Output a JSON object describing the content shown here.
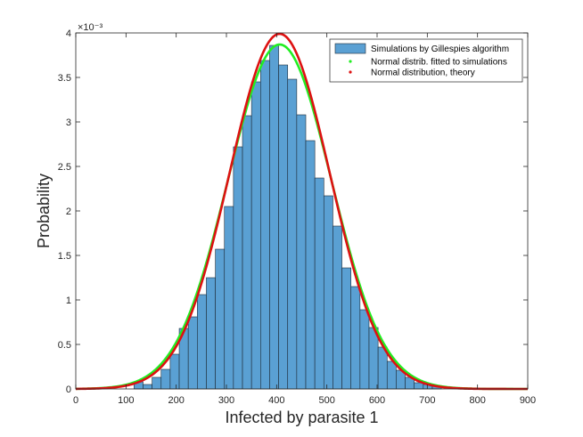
{
  "chart_data": {
    "type": "bar",
    "xlabel": "Infected by parasite 1",
    "ylabel": "Probability",
    "xlim": [
      0,
      900
    ],
    "ylim": [
      0,
      0.004
    ],
    "y_scale_label": "×10⁻³",
    "x_ticks": [
      0,
      100,
      200,
      300,
      400,
      500,
      600,
      700,
      800,
      900
    ],
    "x_tick_labels": [
      "0",
      "100",
      "200",
      "300",
      "400",
      "500",
      "600",
      "700",
      "800",
      "900"
    ],
    "y_ticks": [
      0,
      0.0005,
      0.001,
      0.0015,
      0.002,
      0.0025,
      0.003,
      0.0035,
      0.004
    ],
    "y_tick_labels": [
      "0",
      "0.5",
      "1",
      "1.5",
      "2",
      "2.5",
      "3",
      "3.5",
      "4"
    ],
    "grid": false,
    "legend_position": "top-right",
    "histogram": {
      "name": "Simulations by Gillespies algorithm",
      "color": "#5aa0d3",
      "bin_edges": [
        116,
        134,
        152,
        170,
        188,
        206,
        224,
        242,
        260,
        278,
        296,
        314,
        332,
        350,
        368,
        386,
        404,
        422,
        440,
        458,
        476,
        494,
        512,
        530,
        548,
        566,
        584,
        602,
        620,
        638,
        656,
        674,
        692,
        710,
        728
      ],
      "values": [
        8e-05,
        5e-05,
        0.00013,
        0.00022,
        0.00039,
        0.00068,
        0.00081,
        0.00106,
        0.00125,
        0.00157,
        0.00205,
        0.00272,
        0.00307,
        0.00345,
        0.00369,
        0.00386,
        0.00364,
        0.00348,
        0.00308,
        0.00279,
        0.00237,
        0.00217,
        0.00183,
        0.00136,
        0.00115,
        0.00089,
        0.00069,
        0.00047,
        0.00031,
        0.00021,
        0.00013,
        7e-05,
        5e-05,
        3e-05
      ]
    },
    "series": [
      {
        "name": "Normal distrib. fitted to simulations",
        "type": "line",
        "color": "#22ee22",
        "mean": 406,
        "std": 103,
        "peak": 0.00387
      },
      {
        "name": "Normal distribution, theory",
        "type": "line",
        "color": "#dd1111",
        "mean": 406,
        "std": 100,
        "peak": 0.00399
      }
    ]
  }
}
